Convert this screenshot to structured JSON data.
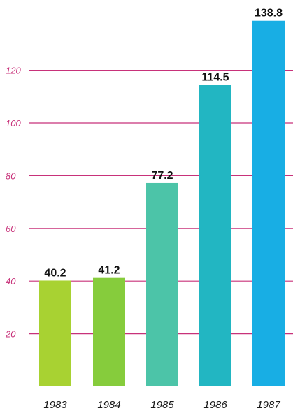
{
  "chart_data": {
    "type": "bar",
    "title": "",
    "xlabel": "",
    "ylabel": "",
    "categories": [
      "1983",
      "1984",
      "1985",
      "1986",
      "1987"
    ],
    "values": [
      40.2,
      41.2,
      77.2,
      114.5,
      138.8
    ],
    "value_labels": [
      "40.2",
      "41.2",
      "77.2",
      "114.5",
      "138.8"
    ],
    "yticks": [
      20,
      40,
      60,
      80,
      100,
      120
    ],
    "ytick_labels": [
      "20",
      "40",
      "60",
      "80",
      "100",
      "120"
    ],
    "ylim": [
      0,
      140
    ],
    "grid": true,
    "legend": "none",
    "bar_colors": [
      "#a8d232",
      "#86cc3c",
      "#4cc4a8",
      "#22b6c2",
      "#18aee4"
    ],
    "grid_color": "#c8327a",
    "tick_label_color": "#c8327a"
  }
}
